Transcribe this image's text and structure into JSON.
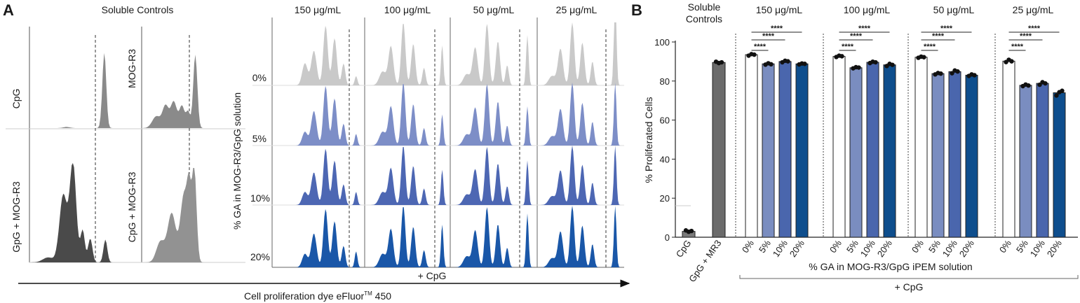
{
  "panels": {
    "a_label": "A",
    "b_label": "B"
  },
  "panel_a": {
    "soluble_title": "Soluble Controls",
    "controls": [
      "CpG",
      "MOG-R3",
      "GpG + MOG-R3",
      "CpG + MOG-R3"
    ],
    "concentrations": [
      "150 μg/mL",
      "100 μg/mL",
      "50 μg/mL",
      "25 μg/mL"
    ],
    "ga_levels": [
      "0%",
      "5%",
      "10%",
      "20%"
    ],
    "ylabel": "% GA in MOG-R3/GpG solution",
    "cpg_label": "+ CpG",
    "xaxis_label": "Cell proliferation dye eFluor",
    "tm": "TM",
    "xaxis_suffix": " 450"
  },
  "chart_data": {
    "type": "bar",
    "title": "",
    "ylabel": "% Proliferated Cells",
    "xlabel": "% GA in MOG-R3/GpG iPEM solution",
    "bottom_label": "+ CpG",
    "ylim": [
      0,
      100
    ],
    "yticks": [
      0,
      20,
      40,
      60,
      80,
      100
    ],
    "soluble_header": [
      "Soluble",
      "Controls"
    ],
    "controls": [
      {
        "label": "CpG",
        "value": 3.0,
        "points": [
          3.5,
          2.8,
          3.2
        ]
      },
      {
        "label": "GpG + MR3",
        "value": 89.5,
        "points": [
          89.9,
          89.2,
          89.6
        ]
      }
    ],
    "group_titles": [
      "150 μg/mL",
      "100 μg/mL",
      "50 μg/mL",
      "25 μg/mL"
    ],
    "categories": [
      "0%",
      "5%",
      "10%",
      "20%"
    ],
    "groups": [
      {
        "values": [
          93.5,
          88.8,
          90.0,
          88.8
        ],
        "points": [
          [
            93.0,
            93.8,
            93.5
          ],
          [
            88.4,
            89.1,
            88.6
          ],
          [
            89.6,
            90.4,
            90.1
          ],
          [
            88.5,
            89.0,
            88.8
          ]
        ]
      },
      {
        "values": [
          92.6,
          86.8,
          89.6,
          88.3
        ],
        "points": [
          [
            92.3,
            93.0,
            92.7
          ],
          [
            86.5,
            87.1,
            86.9
          ],
          [
            89.2,
            89.9,
            89.6
          ],
          [
            87.7,
            88.8,
            88.3
          ]
        ]
      },
      {
        "values": [
          92.2,
          83.8,
          84.8,
          83.0
        ],
        "points": [
          [
            91.9,
            92.5,
            92.2
          ],
          [
            83.4,
            84.1,
            83.8
          ],
          [
            84.0,
            85.4,
            84.9
          ],
          [
            82.6,
            83.4,
            83.0
          ]
        ]
      },
      {
        "values": [
          90.2,
          77.8,
          78.8,
          74.0
        ],
        "points": [
          [
            89.7,
            90.9,
            90.1
          ],
          [
            77.4,
            78.2,
            77.7
          ],
          [
            78.1,
            79.4,
            78.8
          ],
          [
            72.6,
            74.3,
            75.0
          ]
        ]
      }
    ],
    "significance": "****",
    "colors": {
      "bar0": "#ffffff",
      "bar5": "#7a8dc0",
      "bar10": "#4a66ad",
      "bar20": "#0e4e8d",
      "control_cpg": "#7a7a7a",
      "control_gpg": "#6b6b6b"
    }
  },
  "histogram_colors": {
    "gray": "#c9c9c9",
    "pct5": "#7d8ec7",
    "pct10": "#4d67b3",
    "pct20": "#1a57a8",
    "ctrl_light": "#8a8a8a",
    "ctrl_dark": "#4a4a4a"
  }
}
